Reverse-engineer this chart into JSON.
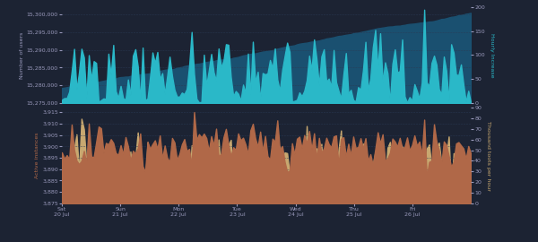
{
  "background_color": "#1c2333",
  "top_panel": {
    "ylim_left": [
      15275000,
      15302000
    ],
    "ylim_right": [
      0,
      200
    ],
    "yticks_left": [
      15275000,
      15280000,
      15285000,
      15290000,
      15295000,
      15300000
    ],
    "yticks_right": [
      0,
      50,
      100,
      150,
      200
    ],
    "ylabel_left": "Number of users",
    "ylabel_right": "Hourly Increase",
    "blue_color": "#1a5070",
    "cyan_color": "#2ab8c8"
  },
  "bottom_panel": {
    "ylim_left": [
      3875,
      3917
    ],
    "ylim_right": [
      0,
      90
    ],
    "yticks_left": [
      3875,
      3880,
      3885,
      3890,
      3895,
      3900,
      3905,
      3910,
      3915
    ],
    "yticks_right": [
      0,
      10,
      20,
      30,
      40,
      50,
      60,
      70,
      80,
      90
    ],
    "ylabel_left": "Active instances",
    "ylabel_right": "Thousand toots per hour",
    "orange_color": "#b06848",
    "yellow_color": "#c8a870"
  },
  "xtick_labels": [
    "Sat\n20 Jul",
    "Sun\n21 Jul",
    "Mon\n22 Jul",
    "Tue\n23 Jul",
    "Wed\n24 Jul",
    "Thu\n25 Jul",
    "Fri\n26 Jul"
  ],
  "n_points": 168,
  "text_color": "#9999bb",
  "grid_color": "#2a3a55",
  "tick_color": "#9999bb"
}
